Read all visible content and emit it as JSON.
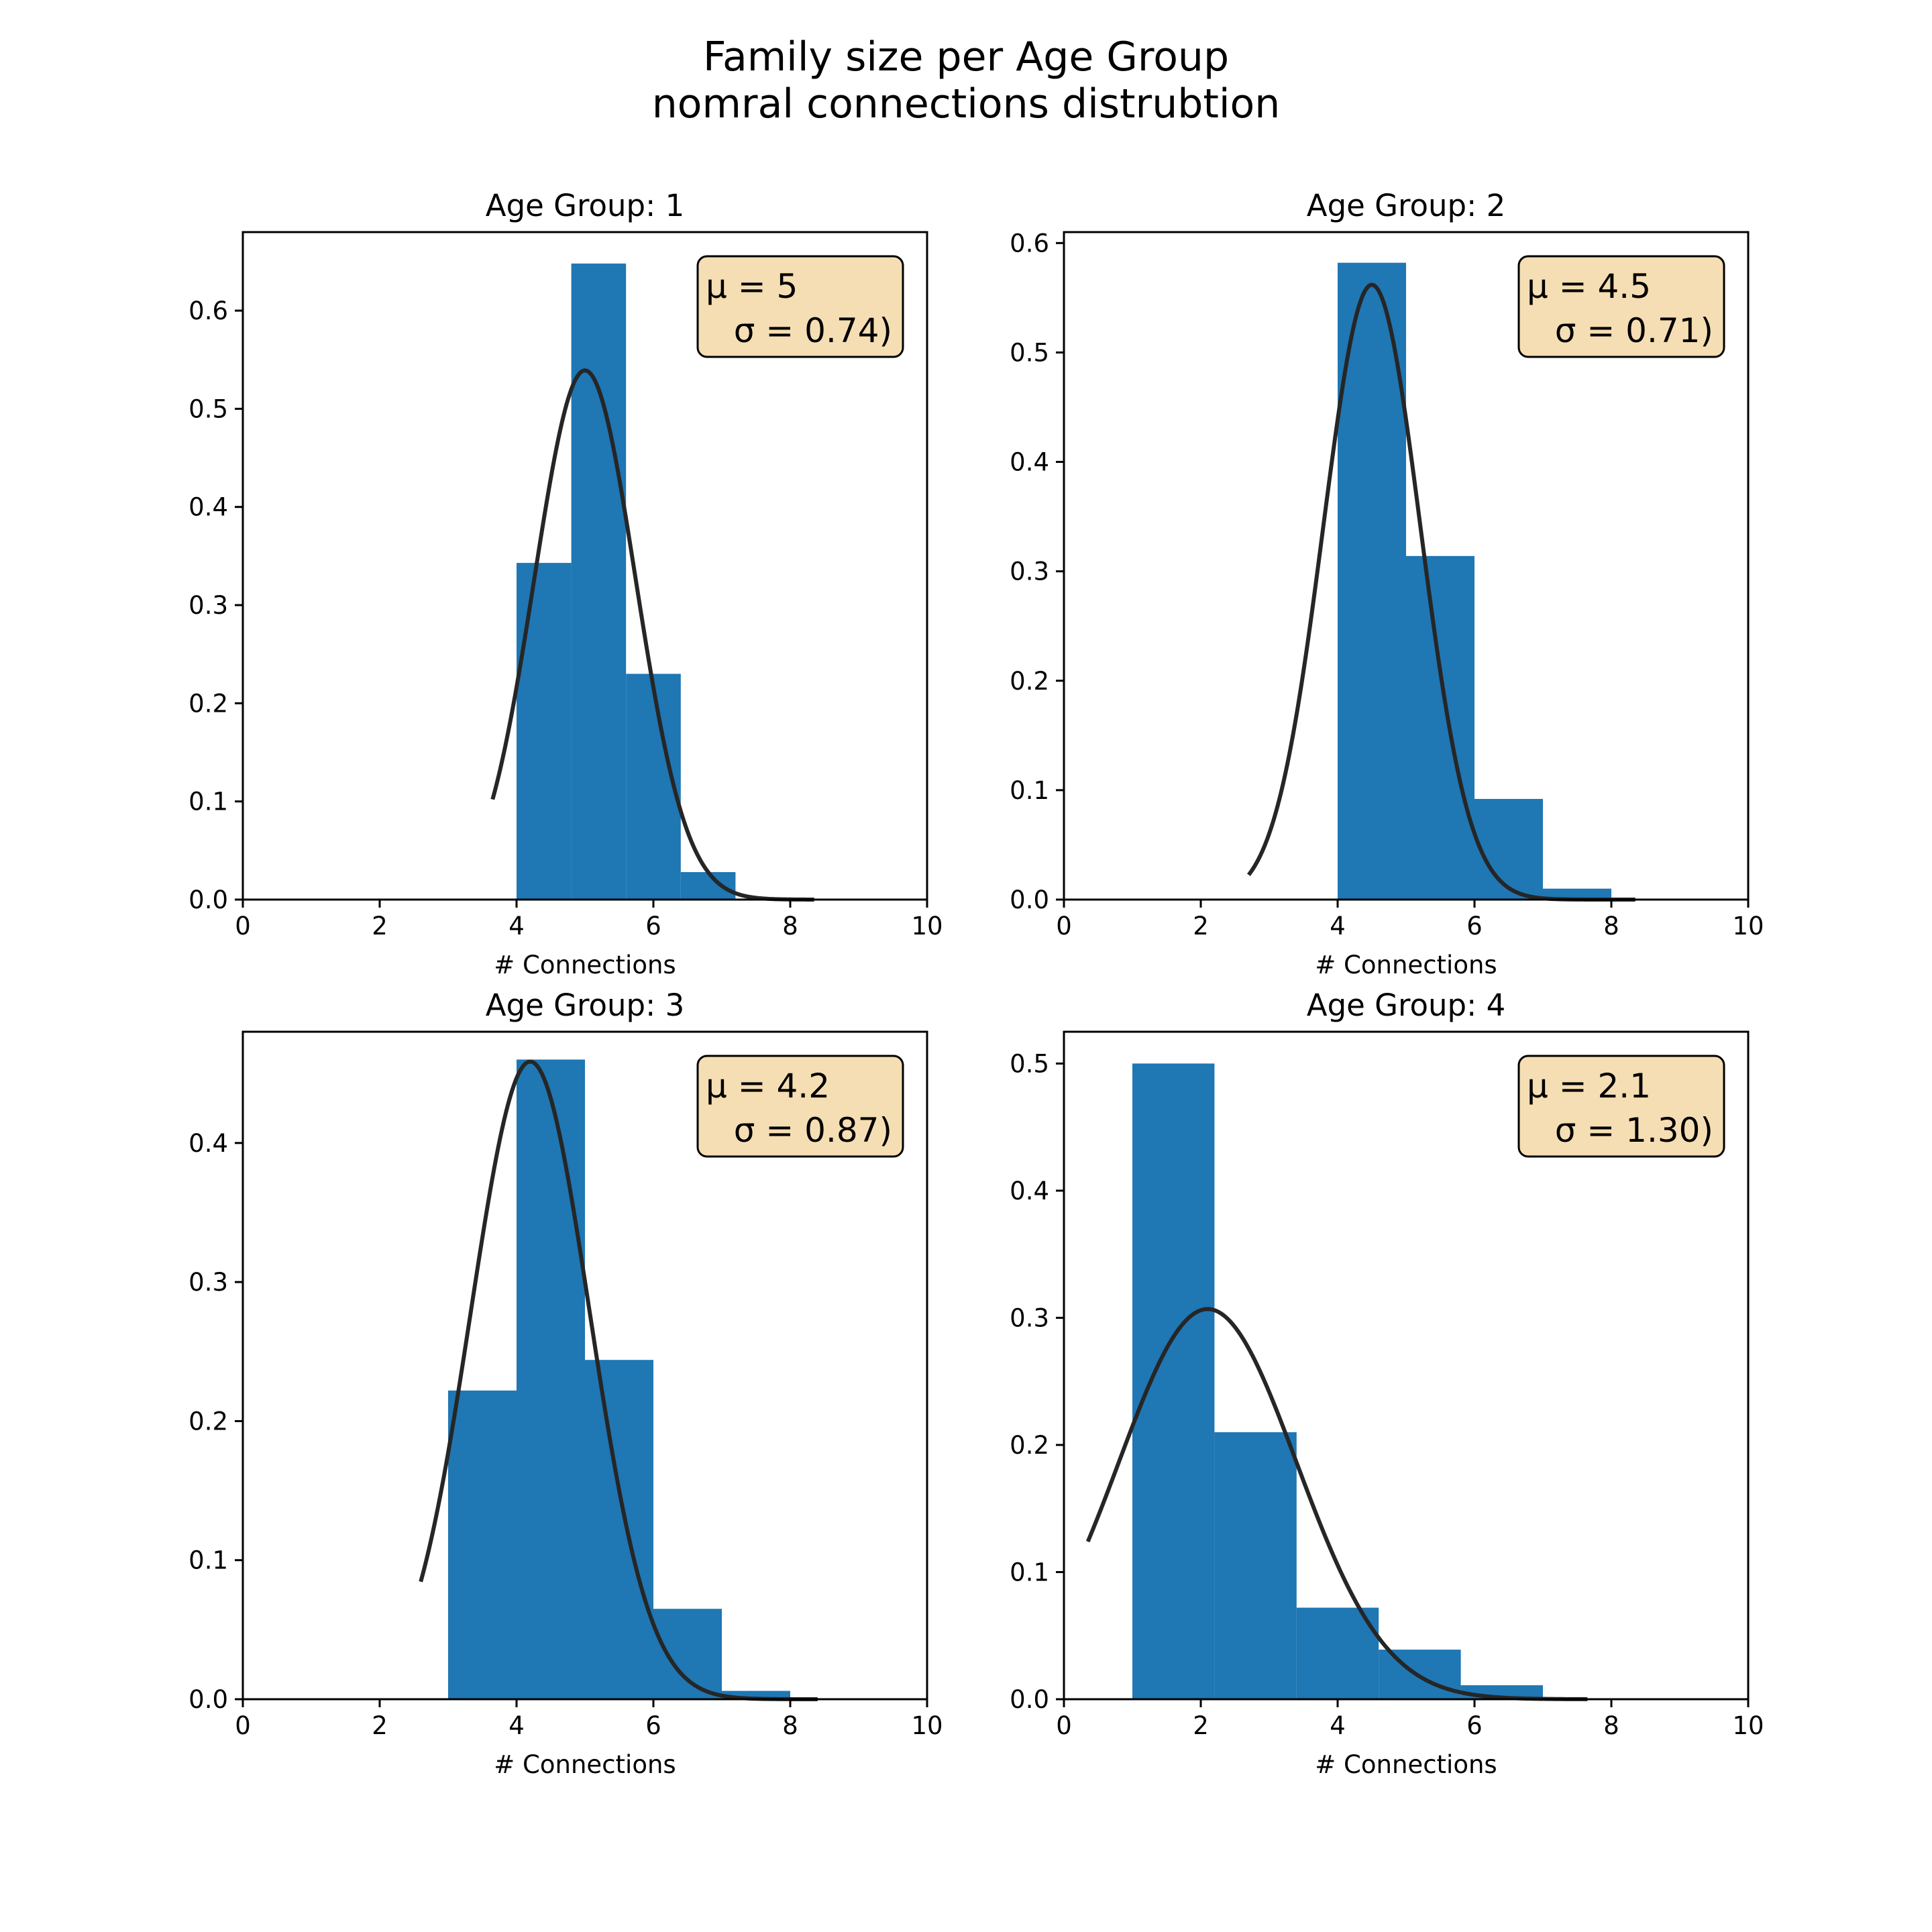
{
  "figure": {
    "title_line1": "Family size per Age Group",
    "title_line2": "nomral connections distrubtion"
  },
  "colors": {
    "bar": "#1f77b4",
    "curve": "#262626",
    "box_fill": "#f5deb3",
    "axis": "#000000"
  },
  "chart_data": [
    {
      "type": "bar",
      "title": "Age Group: 1",
      "xlabel": "# Connections",
      "ylabel": "",
      "xlim": [
        0,
        10
      ],
      "ylim": [
        0,
        0.68
      ],
      "xticks": [
        "0",
        "2",
        "4",
        "6",
        "8",
        "10"
      ],
      "yticks": [
        "0.0",
        "0.1",
        "0.2",
        "0.3",
        "0.4",
        "0.5",
        "0.6"
      ],
      "bins": [
        [
          4.0,
          4.8,
          0.343
        ],
        [
          4.8,
          5.6,
          0.648
        ],
        [
          5.6,
          6.4,
          0.23
        ],
        [
          6.4,
          7.2,
          0.028
        ]
      ],
      "fit": {
        "mu": 5,
        "sigma": 0.74,
        "x_range": [
          3.65,
          8.35
        ]
      },
      "stats_line1": "μ = 5",
      "stats_line2": "σ = 0.74)"
    },
    {
      "type": "bar",
      "title": "Age Group: 2",
      "xlabel": "# Connections",
      "ylabel": "",
      "xlim": [
        0,
        10
      ],
      "ylim": [
        0,
        0.61
      ],
      "xticks": [
        "0",
        "2",
        "4",
        "6",
        "8",
        "10"
      ],
      "yticks": [
        "0.0",
        "0.1",
        "0.2",
        "0.3",
        "0.4",
        "0.5",
        "0.6"
      ],
      "bins": [
        [
          4.0,
          5.0,
          0.582
        ],
        [
          5.0,
          6.0,
          0.314
        ],
        [
          6.0,
          7.0,
          0.092
        ],
        [
          7.0,
          8.0,
          0.01
        ]
      ],
      "fit": {
        "mu": 4.5,
        "sigma": 0.71,
        "x_range": [
          2.7,
          8.35
        ]
      },
      "stats_line1": "μ = 4.5",
      "stats_line2": "σ = 0.71)"
    },
    {
      "type": "bar",
      "title": "Age Group: 3",
      "xlabel": "# Connections",
      "ylabel": "",
      "xlim": [
        0,
        10
      ],
      "ylim": [
        0,
        0.48
      ],
      "xticks": [
        "0",
        "2",
        "4",
        "6",
        "8",
        "10"
      ],
      "yticks": [
        "0.0",
        "0.1",
        "0.2",
        "0.3",
        "0.4"
      ],
      "bins": [
        [
          3.0,
          4.0,
          0.222
        ],
        [
          4.0,
          5.0,
          0.46
        ],
        [
          5.0,
          6.0,
          0.244
        ],
        [
          6.0,
          7.0,
          0.065
        ],
        [
          7.0,
          8.0,
          0.006
        ]
      ],
      "fit": {
        "mu": 4.2,
        "sigma": 0.87,
        "x_range": [
          2.6,
          8.4
        ]
      },
      "stats_line1": "μ = 4.2",
      "stats_line2": "σ = 0.87)"
    },
    {
      "type": "bar",
      "title": "Age Group: 4",
      "xlabel": "# Connections",
      "ylabel": "",
      "xlim": [
        0,
        10
      ],
      "ylim": [
        0,
        0.525
      ],
      "xticks": [
        "0",
        "2",
        "4",
        "6",
        "8",
        "10"
      ],
      "yticks": [
        "0.0",
        "0.1",
        "0.2",
        "0.3",
        "0.4",
        "0.5"
      ],
      "bins": [
        [
          1.0,
          2.2,
          0.5
        ],
        [
          2.2,
          3.4,
          0.21
        ],
        [
          3.4,
          4.6,
          0.072
        ],
        [
          4.6,
          5.8,
          0.039
        ],
        [
          5.8,
          7.0,
          0.011
        ]
      ],
      "fit": {
        "mu": 2.1,
        "sigma": 1.3,
        "x_range": [
          0.35,
          7.65
        ]
      },
      "stats_line1": "μ = 2.1",
      "stats_line2": "σ = 1.30)"
    }
  ]
}
